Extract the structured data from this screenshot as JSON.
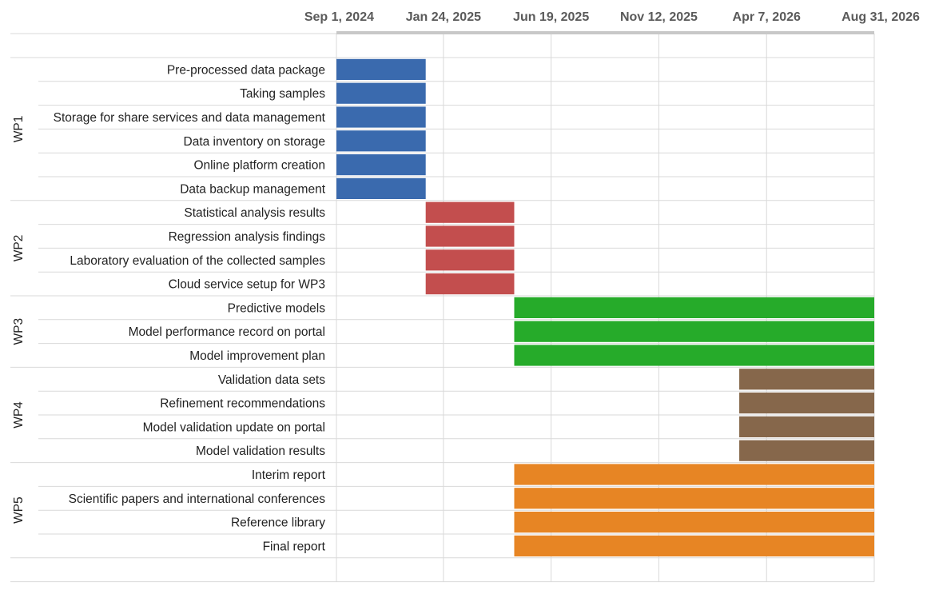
{
  "chart_data": {
    "type": "gantt",
    "title": "",
    "axis": {
      "start": "2024-09-01",
      "end": "2026-08-31",
      "tick_labels": [
        "Sep 1, 2024",
        "Jan 24, 2025",
        "Jun 19, 2025",
        "Nov 12, 2025",
        "Apr 7, 2026",
        "Aug 31, 2026"
      ],
      "tick_dates": [
        "2024-09-01",
        "2025-01-24",
        "2025-06-19",
        "2025-11-12",
        "2026-04-07",
        "2026-08-31"
      ],
      "position": "top",
      "grid": true
    },
    "groups": [
      {
        "name": "WP1",
        "color": "#3a6aae",
        "tasks": [
          {
            "name": "Pre-processed data package",
            "start": "2024-09-01",
            "end": "2024-12-31"
          },
          {
            "name": "Taking samples",
            "start": "2024-09-01",
            "end": "2024-12-31"
          },
          {
            "name": "Storage for share services and data management",
            "start": "2024-09-01",
            "end": "2024-12-31"
          },
          {
            "name": "Data inventory on storage",
            "start": "2024-09-01",
            "end": "2024-12-31"
          },
          {
            "name": "Online platform creation",
            "start": "2024-09-01",
            "end": "2024-12-31"
          },
          {
            "name": "Data backup management",
            "start": "2024-09-01",
            "end": "2024-12-31"
          }
        ]
      },
      {
        "name": "WP2",
        "color": "#c34e4e",
        "tasks": [
          {
            "name": "Statistical analysis results",
            "start": "2024-12-31",
            "end": "2025-04-30"
          },
          {
            "name": "Regression analysis findings",
            "start": "2024-12-31",
            "end": "2025-04-30"
          },
          {
            "name": "Laboratory evaluation of the collected samples",
            "start": "2024-12-31",
            "end": "2025-04-30"
          },
          {
            "name": "Cloud service setup for WP3",
            "start": "2024-12-31",
            "end": "2025-04-30"
          }
        ]
      },
      {
        "name": "WP3",
        "color": "#26ab2a",
        "tasks": [
          {
            "name": "Predictive models",
            "start": "2025-04-30",
            "end": "2026-08-31"
          },
          {
            "name": "Model performance record on portal",
            "start": "2025-04-30",
            "end": "2026-08-31"
          },
          {
            "name": "Model improvement plan",
            "start": "2025-04-30",
            "end": "2026-08-31"
          }
        ]
      },
      {
        "name": "WP4",
        "color": "#86674b",
        "tasks": [
          {
            "name": "Validation data sets",
            "start": "2026-03-01",
            "end": "2026-08-31"
          },
          {
            "name": "Refinement recommendations",
            "start": "2026-03-01",
            "end": "2026-08-31"
          },
          {
            "name": "Model validation update on portal",
            "start": "2026-03-01",
            "end": "2026-08-31"
          },
          {
            "name": "Model validation results",
            "start": "2026-03-01",
            "end": "2026-08-31"
          }
        ]
      },
      {
        "name": "WP5",
        "color": "#e78524",
        "tasks": [
          {
            "name": "Interim report",
            "start": "2025-04-30",
            "end": "2026-08-31"
          },
          {
            "name": "Scientific papers and international conferences",
            "start": "2025-04-30",
            "end": "2026-08-31"
          },
          {
            "name": "Reference library",
            "start": "2025-04-30",
            "end": "2026-08-31"
          },
          {
            "name": "Final report",
            "start": "2025-04-30",
            "end": "2026-08-31"
          }
        ]
      }
    ]
  }
}
